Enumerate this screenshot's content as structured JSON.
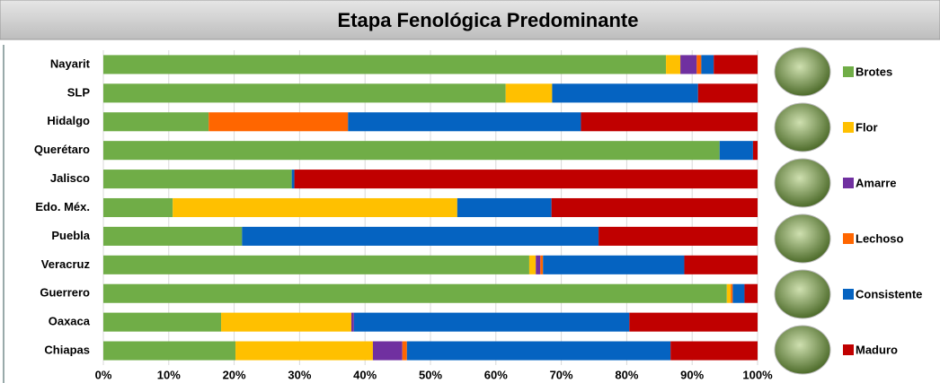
{
  "chart_data": {
    "type": "stacked_barh",
    "title": "Etapa Fenológica Predominante",
    "categories": [
      "Nayarit",
      "SLP",
      "Hidalgo",
      "Querétaro",
      "Jalisco",
      "Edo. Méx.",
      "Puebla",
      "Veracruz",
      "Guerrero",
      "Oaxaca",
      "Chiapas"
    ],
    "series": [
      {
        "name": "Brotes",
        "color": "#70ad47",
        "values": [
          86.0,
          61.5,
          16.1,
          94.2,
          28.8,
          10.6,
          21.2,
          65.1,
          95.3,
          18.0,
          20.2
        ]
      },
      {
        "name": "Flor",
        "color": "#ffc000",
        "values": [
          2.2,
          7.1,
          0,
          0,
          0,
          43.5,
          0,
          1.0,
          0.6,
          19.9,
          21.0
        ]
      },
      {
        "name": "Amarre",
        "color": "#7030a0",
        "values": [
          2.5,
          0,
          0,
          0,
          0,
          0,
          0,
          0.7,
          0,
          0.4,
          4.5
        ]
      },
      {
        "name": "Lechoso",
        "color": "#ff6600",
        "values": [
          0.7,
          0,
          21.3,
          0,
          0,
          0,
          0,
          0.4,
          0.3,
          0,
          0.7
        ]
      },
      {
        "name": "Consistente",
        "color": "#0563c1",
        "values": [
          1.9,
          22.3,
          35.6,
          5.1,
          0.4,
          14.4,
          54.5,
          21.6,
          1.8,
          42.1,
          40.3
        ]
      },
      {
        "name": "Maduro",
        "color": "#c00000",
        "values": [
          6.7,
          9.1,
          27.0,
          0.7,
          70.8,
          31.5,
          24.3,
          11.2,
          2.0,
          19.6,
          13.3
        ]
      }
    ],
    "xlim": [
      0,
      100
    ],
    "xticks": [
      {
        "value": 0,
        "label": "0%"
      },
      {
        "value": 10,
        "label": "10%"
      },
      {
        "value": 20,
        "label": "20%"
      },
      {
        "value": 30,
        "label": "30%"
      },
      {
        "value": 40,
        "label": "40%"
      },
      {
        "value": 50,
        "label": "50%"
      },
      {
        "value": 60,
        "label": "60%"
      },
      {
        "value": 70,
        "label": "70%"
      },
      {
        "value": 80,
        "label": "80%"
      },
      {
        "value": 90,
        "label": "90%"
      },
      {
        "value": 100,
        "label": "100%"
      }
    ],
    "grid": true
  }
}
